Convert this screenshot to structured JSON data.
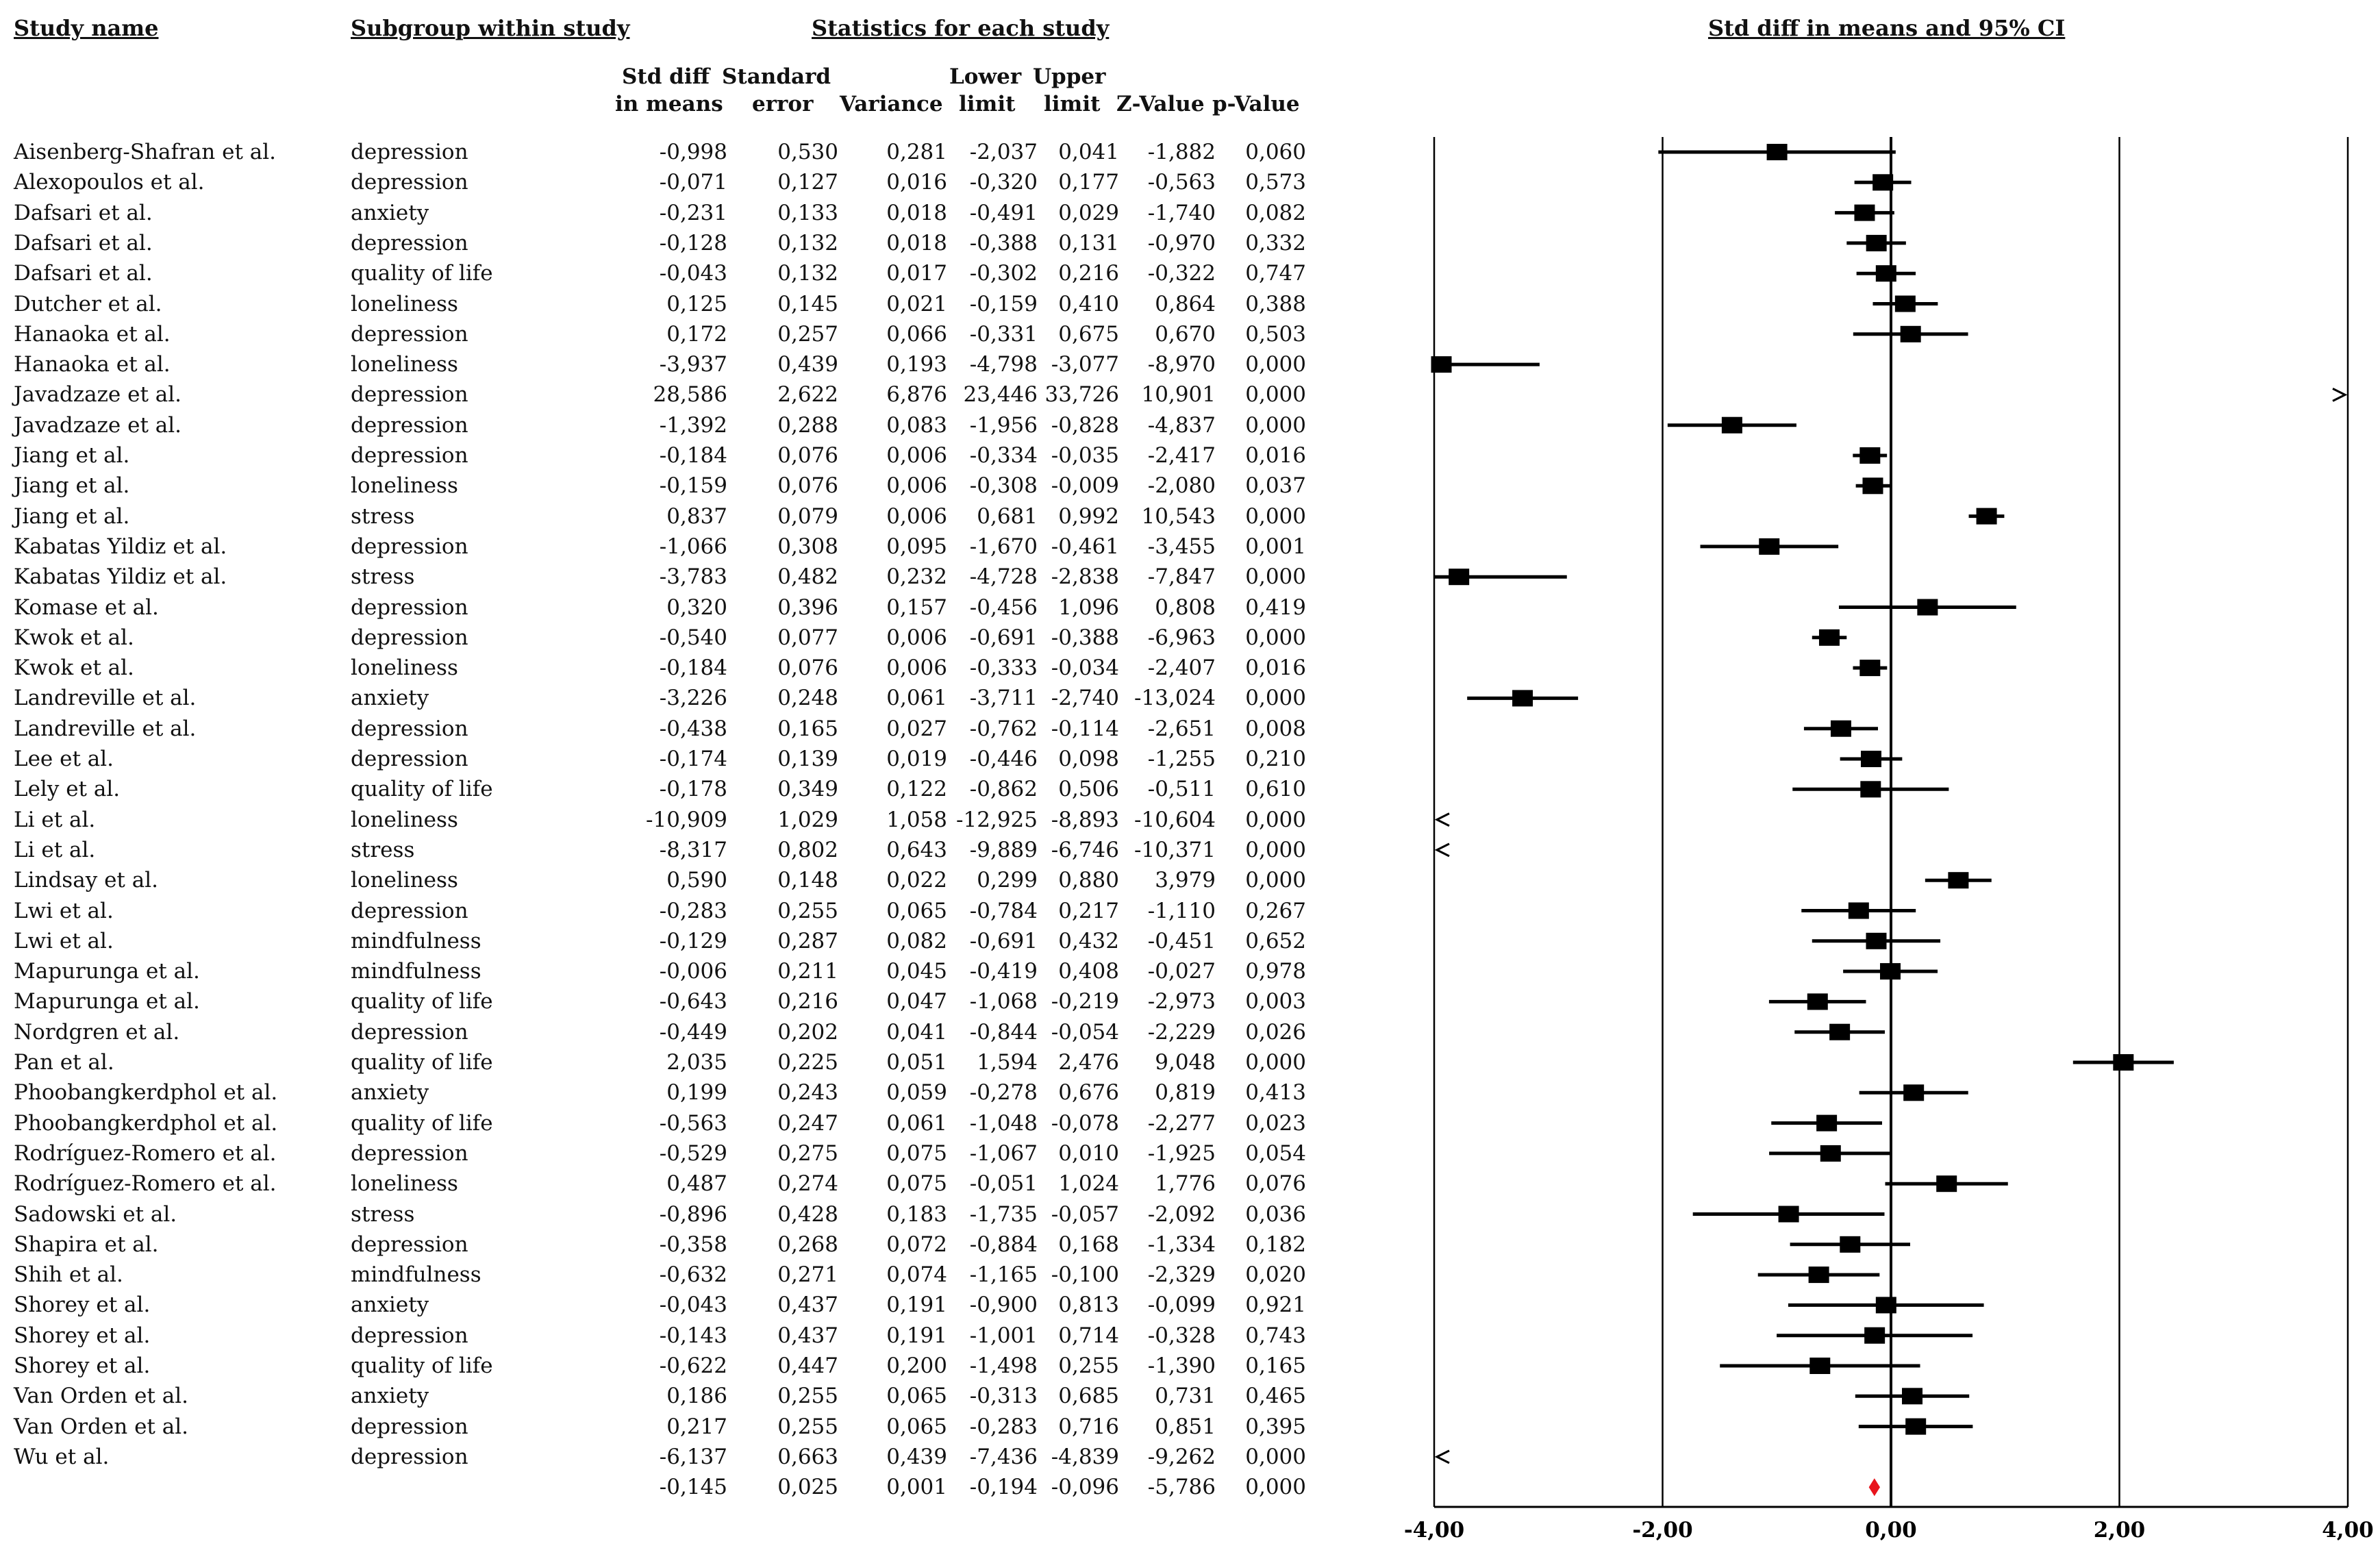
{
  "headers": {
    "study_name": "Study name",
    "subgroup": "Subgroup within study",
    "statistics": "Statistics for each study",
    "forest": "Std diff in means and 95% CI"
  },
  "columns": {
    "std_diff_1": "Std diff",
    "std_diff_2": "in means",
    "se_1": "Standard",
    "se_2": "error",
    "variance": "Variance",
    "lower_1": "Lower",
    "lower_2": "limit",
    "upper_1": "Upper",
    "upper_2": "limit",
    "z": "Z-Value",
    "p": "p-Value"
  },
  "chart_data": {
    "type": "forest",
    "title": "Std diff in means and 95% CI",
    "xlim": [
      -4,
      4
    ],
    "xticks": [
      "-4,00",
      "-2,00",
      "0,00",
      "2,00",
      "4,00"
    ],
    "xtick_values": [
      -4,
      -2,
      0,
      2,
      4
    ],
    "rows": [
      {
        "study": "Aisenberg-Shafran et al.",
        "subgroup": "depression",
        "smd": "-0,998",
        "se": "0,530",
        "var": "0,281",
        "lower": "-2,037",
        "upper": "0,041",
        "z": "-1,882",
        "p": "0,060",
        "v": -0.998,
        "lo": -2.037,
        "hi": 0.041
      },
      {
        "study": "Alexopoulos et al.",
        "subgroup": "depression",
        "smd": "-0,071",
        "se": "0,127",
        "var": "0,016",
        "lower": "-0,320",
        "upper": "0,177",
        "z": "-0,563",
        "p": "0,573",
        "v": -0.071,
        "lo": -0.32,
        "hi": 0.177
      },
      {
        "study": "Dafsari et al.",
        "subgroup": "anxiety",
        "smd": "-0,231",
        "se": "0,133",
        "var": "0,018",
        "lower": "-0,491",
        "upper": "0,029",
        "z": "-1,740",
        "p": "0,082",
        "v": -0.231,
        "lo": -0.491,
        "hi": 0.029
      },
      {
        "study": "Dafsari et al.",
        "subgroup": "depression",
        "smd": "-0,128",
        "se": "0,132",
        "var": "0,018",
        "lower": "-0,388",
        "upper": "0,131",
        "z": "-0,970",
        "p": "0,332",
        "v": -0.128,
        "lo": -0.388,
        "hi": 0.131
      },
      {
        "study": "Dafsari et al.",
        "subgroup": "quality of life",
        "smd": "-0,043",
        "se": "0,132",
        "var": "0,017",
        "lower": "-0,302",
        "upper": "0,216",
        "z": "-0,322",
        "p": "0,747",
        "v": -0.043,
        "lo": -0.302,
        "hi": 0.216
      },
      {
        "study": "Dutcher et al.",
        "subgroup": "loneliness",
        "smd": "0,125",
        "se": "0,145",
        "var": "0,021",
        "lower": "-0,159",
        "upper": "0,410",
        "z": "0,864",
        "p": "0,388",
        "v": 0.125,
        "lo": -0.159,
        "hi": 0.41
      },
      {
        "study": "Hanaoka et al.",
        "subgroup": "depression",
        "smd": "0,172",
        "se": "0,257",
        "var": "0,066",
        "lower": "-0,331",
        "upper": "0,675",
        "z": "0,670",
        "p": "0,503",
        "v": 0.172,
        "lo": -0.331,
        "hi": 0.675
      },
      {
        "study": "Hanaoka et al.",
        "subgroup": "loneliness",
        "smd": "-3,937",
        "se": "0,439",
        "var": "0,193",
        "lower": "-4,798",
        "upper": "-3,077",
        "z": "-8,970",
        "p": "0,000",
        "v": -3.937,
        "lo": -4.798,
        "hi": -3.077
      },
      {
        "study": "Javadzaze et al.",
        "subgroup": "depression",
        "smd": "28,586",
        "se": "2,622",
        "var": "6,876",
        "lower": "23,446",
        "upper": "33,726",
        "z": "10,901",
        "p": "0,000",
        "v": 28.586,
        "lo": 23.446,
        "hi": 33.726
      },
      {
        "study": "Javadzaze et al.",
        "subgroup": "depression",
        "smd": "-1,392",
        "se": "0,288",
        "var": "0,083",
        "lower": "-1,956",
        "upper": "-0,828",
        "z": "-4,837",
        "p": "0,000",
        "v": -1.392,
        "lo": -1.956,
        "hi": -0.828
      },
      {
        "study": "Jiang et al.",
        "subgroup": "depression",
        "smd": "-0,184",
        "se": "0,076",
        "var": "0,006",
        "lower": "-0,334",
        "upper": "-0,035",
        "z": "-2,417",
        "p": "0,016",
        "v": -0.184,
        "lo": -0.334,
        "hi": -0.035
      },
      {
        "study": "Jiang et al.",
        "subgroup": "loneliness",
        "smd": "-0,159",
        "se": "0,076",
        "var": "0,006",
        "lower": "-0,308",
        "upper": "-0,009",
        "z": "-2,080",
        "p": "0,037",
        "v": -0.159,
        "lo": -0.308,
        "hi": -0.009
      },
      {
        "study": "Jiang et al.",
        "subgroup": "stress",
        "smd": "0,837",
        "se": "0,079",
        "var": "0,006",
        "lower": "0,681",
        "upper": "0,992",
        "z": "10,543",
        "p": "0,000",
        "v": 0.837,
        "lo": 0.681,
        "hi": 0.992
      },
      {
        "study": "Kabatas Yildiz et al.",
        "subgroup": "depression",
        "smd": "-1,066",
        "se": "0,308",
        "var": "0,095",
        "lower": "-1,670",
        "upper": "-0,461",
        "z": "-3,455",
        "p": "0,001",
        "v": -1.066,
        "lo": -1.67,
        "hi": -0.461
      },
      {
        "study": "Kabatas Yildiz et al.",
        "subgroup": "stress",
        "smd": "-3,783",
        "se": "0,482",
        "var": "0,232",
        "lower": "-4,728",
        "upper": "-2,838",
        "z": "-7,847",
        "p": "0,000",
        "v": -3.783,
        "lo": -4.728,
        "hi": -2.838
      },
      {
        "study": "Komase et al.",
        "subgroup": "depression",
        "smd": "0,320",
        "se": "0,396",
        "var": "0,157",
        "lower": "-0,456",
        "upper": "1,096",
        "z": "0,808",
        "p": "0,419",
        "v": 0.32,
        "lo": -0.456,
        "hi": 1.096
      },
      {
        "study": "Kwok et al.",
        "subgroup": "depression",
        "smd": "-0,540",
        "se": "0,077",
        "var": "0,006",
        "lower": "-0,691",
        "upper": "-0,388",
        "z": "-6,963",
        "p": "0,000",
        "v": -0.54,
        "lo": -0.691,
        "hi": -0.388
      },
      {
        "study": "Kwok et al.",
        "subgroup": "loneliness",
        "smd": "-0,184",
        "se": "0,076",
        "var": "0,006",
        "lower": "-0,333",
        "upper": "-0,034",
        "z": "-2,407",
        "p": "0,016",
        "v": -0.184,
        "lo": -0.333,
        "hi": -0.034
      },
      {
        "study": "Landreville et al.",
        "subgroup": "anxiety",
        "smd": "-3,226",
        "se": "0,248",
        "var": "0,061",
        "lower": "-3,711",
        "upper": "-2,740",
        "z": "-13,024",
        "p": "0,000",
        "v": -3.226,
        "lo": -3.711,
        "hi": -2.74
      },
      {
        "study": "Landreville et al.",
        "subgroup": "depression",
        "smd": "-0,438",
        "se": "0,165",
        "var": "0,027",
        "lower": "-0,762",
        "upper": "-0,114",
        "z": "-2,651",
        "p": "0,008",
        "v": -0.438,
        "lo": -0.762,
        "hi": -0.114
      },
      {
        "study": "Lee et al.",
        "subgroup": "depression",
        "smd": "-0,174",
        "se": "0,139",
        "var": "0,019",
        "lower": "-0,446",
        "upper": "0,098",
        "z": "-1,255",
        "p": "0,210",
        "v": -0.174,
        "lo": -0.446,
        "hi": 0.098
      },
      {
        "study": "Lely et al.",
        "subgroup": "quality of life",
        "smd": "-0,178",
        "se": "0,349",
        "var": "0,122",
        "lower": "-0,862",
        "upper": "0,506",
        "z": "-0,511",
        "p": "0,610",
        "v": -0.178,
        "lo": -0.862,
        "hi": 0.506
      },
      {
        "study": "Li et al.",
        "subgroup": "loneliness",
        "smd": "-10,909",
        "se": "1,029",
        "var": "1,058",
        "lower": "-12,925",
        "upper": "-8,893",
        "z": "-10,604",
        "p": "0,000",
        "v": -10.909,
        "lo": -12.925,
        "hi": -8.893
      },
      {
        "study": "Li et al.",
        "subgroup": "stress",
        "smd": "-8,317",
        "se": "0,802",
        "var": "0,643",
        "lower": "-9,889",
        "upper": "-6,746",
        "z": "-10,371",
        "p": "0,000",
        "v": -8.317,
        "lo": -9.889,
        "hi": -6.746
      },
      {
        "study": "Lindsay et al.",
        "subgroup": "loneliness",
        "smd": "0,590",
        "se": "0,148",
        "var": "0,022",
        "lower": "0,299",
        "upper": "0,880",
        "z": "3,979",
        "p": "0,000",
        "v": 0.59,
        "lo": 0.299,
        "hi": 0.88
      },
      {
        "study": "Lwi et al.",
        "subgroup": "depression",
        "smd": "-0,283",
        "se": "0,255",
        "var": "0,065",
        "lower": "-0,784",
        "upper": "0,217",
        "z": "-1,110",
        "p": "0,267",
        "v": -0.283,
        "lo": -0.784,
        "hi": 0.217
      },
      {
        "study": "Lwi et al.",
        "subgroup": "mindfulness",
        "smd": "-0,129",
        "se": "0,287",
        "var": "0,082",
        "lower": "-0,691",
        "upper": "0,432",
        "z": "-0,451",
        "p": "0,652",
        "v": -0.129,
        "lo": -0.691,
        "hi": 0.432
      },
      {
        "study": "Mapurunga et al.",
        "subgroup": "mindfulness",
        "smd": "-0,006",
        "se": "0,211",
        "var": "0,045",
        "lower": "-0,419",
        "upper": "0,408",
        "z": "-0,027",
        "p": "0,978",
        "v": -0.006,
        "lo": -0.419,
        "hi": 0.408
      },
      {
        "study": "Mapurunga et al.",
        "subgroup": "quality of life",
        "smd": "-0,643",
        "se": "0,216",
        "var": "0,047",
        "lower": "-1,068",
        "upper": "-0,219",
        "z": "-2,973",
        "p": "0,003",
        "v": -0.643,
        "lo": -1.068,
        "hi": -0.219
      },
      {
        "study": "Nordgren et al.",
        "subgroup": "depression",
        "smd": "-0,449",
        "se": "0,202",
        "var": "0,041",
        "lower": "-0,844",
        "upper": "-0,054",
        "z": "-2,229",
        "p": "0,026",
        "v": -0.449,
        "lo": -0.844,
        "hi": -0.054
      },
      {
        "study": "Pan et al.",
        "subgroup": "quality of life",
        "smd": "2,035",
        "se": "0,225",
        "var": "0,051",
        "lower": "1,594",
        "upper": "2,476",
        "z": "9,048",
        "p": "0,000",
        "v": 2.035,
        "lo": 1.594,
        "hi": 2.476
      },
      {
        "study": "Phoobangkerdphol et al.",
        "subgroup": "anxiety",
        "smd": "0,199",
        "se": "0,243",
        "var": "0,059",
        "lower": "-0,278",
        "upper": "0,676",
        "z": "0,819",
        "p": "0,413",
        "v": 0.199,
        "lo": -0.278,
        "hi": 0.676
      },
      {
        "study": "Phoobangkerdphol et al.",
        "subgroup": "quality of life",
        "smd": "-0,563",
        "se": "0,247",
        "var": "0,061",
        "lower": "-1,048",
        "upper": "-0,078",
        "z": "-2,277",
        "p": "0,023",
        "v": -0.563,
        "lo": -1.048,
        "hi": -0.078
      },
      {
        "study": "Rodríguez-Romero et al.",
        "subgroup": "depression",
        "smd": "-0,529",
        "se": "0,275",
        "var": "0,075",
        "lower": "-1,067",
        "upper": "0,010",
        "z": "-1,925",
        "p": "0,054",
        "v": -0.529,
        "lo": -1.067,
        "hi": 0.01
      },
      {
        "study": "Rodríguez-Romero et al.",
        "subgroup": "loneliness",
        "smd": "0,487",
        "se": "0,274",
        "var": "0,075",
        "lower": "-0,051",
        "upper": "1,024",
        "z": "1,776",
        "p": "0,076",
        "v": 0.487,
        "lo": -0.051,
        "hi": 1.024
      },
      {
        "study": "Sadowski et al.",
        "subgroup": "stress",
        "smd": "-0,896",
        "se": "0,428",
        "var": "0,183",
        "lower": "-1,735",
        "upper": "-0,057",
        "z": "-2,092",
        "p": "0,036",
        "v": -0.896,
        "lo": -1.735,
        "hi": -0.057
      },
      {
        "study": "Shapira et al.",
        "subgroup": "depression",
        "smd": "-0,358",
        "se": "0,268",
        "var": "0,072",
        "lower": "-0,884",
        "upper": "0,168",
        "z": "-1,334",
        "p": "0,182",
        "v": -0.358,
        "lo": -0.884,
        "hi": 0.168
      },
      {
        "study": "Shih et al.",
        "subgroup": "mindfulness",
        "smd": "-0,632",
        "se": "0,271",
        "var": "0,074",
        "lower": "-1,165",
        "upper": "-0,100",
        "z": "-2,329",
        "p": "0,020",
        "v": -0.632,
        "lo": -1.165,
        "hi": -0.1
      },
      {
        "study": "Shorey et al.",
        "subgroup": "anxiety",
        "smd": "-0,043",
        "se": "0,437",
        "var": "0,191",
        "lower": "-0,900",
        "upper": "0,813",
        "z": "-0,099",
        "p": "0,921",
        "v": -0.043,
        "lo": -0.9,
        "hi": 0.813
      },
      {
        "study": "Shorey et al.",
        "subgroup": "depression",
        "smd": "-0,143",
        "se": "0,437",
        "var": "0,191",
        "lower": "-1,001",
        "upper": "0,714",
        "z": "-0,328",
        "p": "0,743",
        "v": -0.143,
        "lo": -1.001,
        "hi": 0.714
      },
      {
        "study": "Shorey et al.",
        "subgroup": "quality of life",
        "smd": "-0,622",
        "se": "0,447",
        "var": "0,200",
        "lower": "-1,498",
        "upper": "0,255",
        "z": "-1,390",
        "p": "0,165",
        "v": -0.622,
        "lo": -1.498,
        "hi": 0.255
      },
      {
        "study": "Van Orden et al.",
        "subgroup": "anxiety",
        "smd": "0,186",
        "se": "0,255",
        "var": "0,065",
        "lower": "-0,313",
        "upper": "0,685",
        "z": "0,731",
        "p": "0,465",
        "v": 0.186,
        "lo": -0.313,
        "hi": 0.685
      },
      {
        "study": "Van Orden et al.",
        "subgroup": "depression",
        "smd": "0,217",
        "se": "0,255",
        "var": "0,065",
        "lower": "-0,283",
        "upper": "0,716",
        "z": "0,851",
        "p": "0,395",
        "v": 0.217,
        "lo": -0.283,
        "hi": 0.716
      },
      {
        "study": "Wu et al.",
        "subgroup": "depression",
        "smd": "-6,137",
        "se": "0,663",
        "var": "0,439",
        "lower": "-7,436",
        "upper": "-4,839",
        "z": "-9,262",
        "p": "0,000",
        "v": -6.137,
        "lo": -7.436,
        "hi": -4.839
      }
    ],
    "summary": {
      "study": "",
      "subgroup": "",
      "smd": "-0,145",
      "se": "0,025",
      "var": "0,001",
      "lower": "-0,194",
      "upper": "-0,096",
      "z": "-5,786",
      "p": "0,000",
      "v": -0.145,
      "lo": -0.194,
      "hi": -0.096
    },
    "colors": {
      "marker": "#000000",
      "summary": "#e8141c",
      "axis": "#000000"
    }
  }
}
